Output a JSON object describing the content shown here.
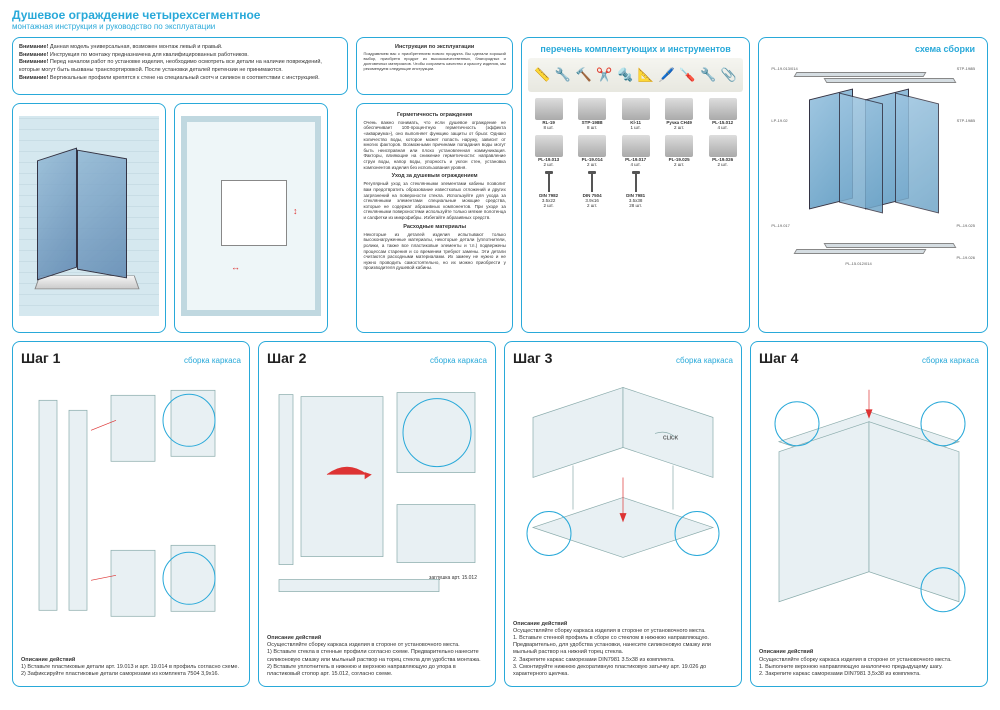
{
  "header": {
    "title": "Душевое ограждение четырехсегментное",
    "subtitle": "монтажная инструкция и руководство по эксплуатации"
  },
  "warnings": {
    "lines": [
      {
        "b": "Внимание!",
        "t": " Данная модель универсальная, возможен монтаж левый и правый."
      },
      {
        "b": "Внимание!",
        "t": " Инструкция по монтажу предназначена для квалифицированных работников."
      },
      {
        "b": "Внимание!",
        "t": " Перед началом работ по установке изделия, необходимо осмотреть все детали на наличие повреждений, которые могут быть вызваны транспортировкой. После установки деталей претензии не принимаются."
      },
      {
        "b": "Внимание!",
        "t": " Вертикальные профили крепятся к стене на специальный скотч и силикон в соответствии с инструкцией."
      }
    ]
  },
  "instruction_text": {
    "h1": "Инструкция по эксплуатации",
    "p1": "Поздравляем вас с приобретением нового продукта. Вы сделали хороший выбор, приобретя продукт из высококачественных, благородных и долговечных материалов. Чтобы сохранить качество и красоту изделия, мы рекомендуем следующие инструкции.",
    "h2": "Герметичность ограждения",
    "p2": "Очень важно понимать, что если душевое ограждение не обеспечивает 100-процентную герметичность (эффекта «аквариума»), оно выполняет функцию защиты от брызг. Однако количество воды, которое может попасть наружу, зависит от многих факторов. Возможными причинами попадания воды могут быть неисправная или плохо установленная коммуникация. Факторы, влияющие на снижение герметичности: направление струи воды, напор воды, упорность и уклон стен, установка компонентов изделия без использования уровня.",
    "h3": "Уход за душевым ограждением",
    "p3": "Регулярный уход за стеклянными элементами кабины позволит вам предотвратить образование известковых отложений и других загрязнений на поверхности стекла. Используйте для ухода за стеклянными элементами специальные моющие средства, которые не содержат абразивных компонентов. При уходе за стеклянными поверхностями используйте только мягкие полотенца и салфетки из микрофибры. Избегайте абразивных средств.",
    "h4": "Расходные материалы",
    "p4": "Некоторые из деталей изделия испытывают только высоконагруженные материалы, некоторые детали (уплотнители, ролики, а также все пластиковые элементы и т.п.) подвержены процессам старения и со временем требуют замены. Эти детали считаются расходными материалами. Их замену не нужно и не нужно проводить самостоятельно, но их можно приобрести у производителя душевой кабины."
  },
  "parts": {
    "title": "перечень комплектующих и инструментов",
    "tools": [
      "📏",
      "🔧",
      "🔨",
      "✂️",
      "🔩",
      "📐",
      "🖊️",
      "🪛",
      "🔧",
      "📎"
    ],
    "items_row1": [
      {
        "code": "RL-19",
        "qty": "8 шт."
      },
      {
        "code": "STP-198B",
        "qty": "8 шт."
      },
      {
        "code": "Kl-11",
        "qty": "1 шт."
      },
      {
        "code": "Ручка CH49",
        "qty": "2 шт."
      },
      {
        "code": "PL-15.012",
        "qty": "4 шт."
      }
    ],
    "items_row2": [
      {
        "code": "PL-19.013",
        "qty": "2 шт."
      },
      {
        "code": "PL-19.014",
        "qty": "2 шт."
      },
      {
        "code": "PL-19.017",
        "qty": "4 шт."
      },
      {
        "code": "PL-19.025",
        "qty": "2 шт."
      },
      {
        "code": "PL-19.026",
        "qty": "2 шт."
      }
    ],
    "items_row3_screws": [
      {
        "code": "DIN 7982",
        "spec": "3.5x22",
        "qty": "2 шт."
      },
      {
        "code": "DIN 7504",
        "spec": "3.9x16",
        "qty": "2 шт."
      },
      {
        "code": "DIN 7981",
        "spec": "3.5x38",
        "qty": "28 шт."
      }
    ]
  },
  "schema": {
    "title": "схема сборки",
    "labels": [
      "PL-19.013/014",
      "STP-198B",
      "PL-19.026",
      "LP-19.02",
      "STP-198B",
      "PL-19.02",
      "PL-19.017",
      "PL-19.025",
      "PL-15.012/014"
    ]
  },
  "steps": {
    "tag": "сборка каркаса",
    "desc_label": "Описание действий",
    "s1": {
      "num": "Шаг 1",
      "desc": [
        "1) Вставьте пластиковые детали арт. 19.013 и арт. 19.014 в профиль согласно схеме.",
        "2) Зафиксируйте пластиковые детали саморезами из комплекта 7504 3,9x16."
      ]
    },
    "s2": {
      "num": "Шаг 2",
      "note": "заглушка арт. 15.012",
      "desc": [
        "Осуществляйте сборку каркаса изделия в стороне от установочного места.",
        "1) Вставьте стекла в стенные профили согласно схеме. Предварительно нанесите силиконовую смазку или мыльный раствор на торец стекла для удобства монтажа.",
        "2) Вставьте уплотнитель в нижнюю и верхнюю направляющую до упора в пластиковый стопор арт. 15.012, согласно схеме."
      ]
    },
    "s3": {
      "num": "Шаг 3",
      "click": "CLICK",
      "desc": [
        "Осуществляйте сборку каркаса изделия в стороне от установочного места.",
        "1. Вставьте стенной профиль в сборе со стеклом в нижнюю направляющую. Предварительно, для удобства установки, нанесите силиконовую смазку или мыльный раствор на нижний торец стекла.",
        "2. Закрепите каркас саморезами DIN7981 3.5x38 из комплекта.",
        "3. Смонтируйте нижнюю декоративную пластиковую затычку арт. 19.026 до характерного щелчка."
      ]
    },
    "s4": {
      "num": "Шаг 4",
      "desc": [
        "Осуществляйте сборку каркаса изделия в стороне от установочного места.",
        "1. Выполните верхнюю направляющую аналогично предыдущему шагу.",
        "2. Закрепите каркас саморезами DIN7981 3,5x38 из комплекта."
      ]
    }
  },
  "colors": {
    "accent": "#29a9d9",
    "glass": "#7daecb",
    "line": "#8899aa",
    "red": "#d33333"
  }
}
